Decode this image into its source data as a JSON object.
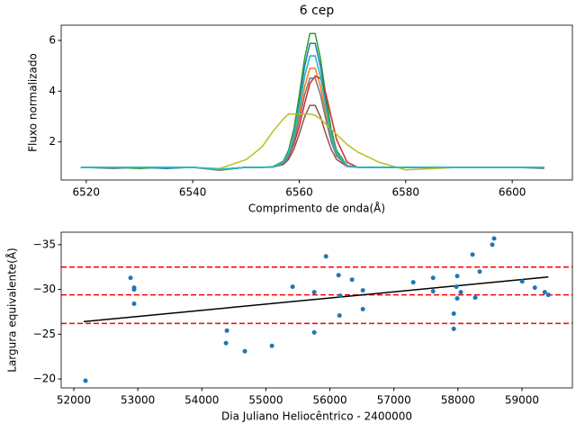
{
  "chart_data": [
    {
      "type": "line",
      "title": "6 cep",
      "xlabel": "Comprimento de onda(Å)",
      "ylabel": "Fluxo normalizado",
      "x": [
        6519,
        6525,
        6530,
        6535,
        6540,
        6545,
        6550,
        6553,
        6555,
        6557,
        6558,
        6559,
        6560,
        6561,
        6562,
        6563,
        6564,
        6565,
        6566,
        6567,
        6569,
        6571,
        6575,
        6580,
        6590,
        6600,
        6606
      ],
      "series": [
        {
          "color": "#1f77b4",
          "values": [
            1,
            1,
            1,
            0.95,
            1,
            0.9,
            1,
            1,
            1.02,
            1.22,
            1.62,
            2.41,
            3.62,
            4.97,
            5.88,
            5.88,
            4.97,
            3.62,
            2.41,
            1.62,
            1.07,
            1,
            1,
            1,
            1,
            1,
            1
          ]
        },
        {
          "color": "#ff7f0e",
          "values": [
            1,
            1,
            1,
            1,
            1,
            0.9,
            1,
            1,
            1.01,
            1.18,
            1.5,
            2.13,
            3.1,
            4.17,
            4.9,
            4.9,
            4.17,
            3.1,
            2.13,
            1.5,
            1.05,
            1,
            1,
            1,
            1,
            1,
            1
          ]
        },
        {
          "color": "#2ca02c",
          "values": [
            1,
            1,
            0.95,
            1,
            1,
            0.88,
            1,
            1,
            1.02,
            1.24,
            1.67,
            2.52,
            3.83,
            5.28,
            6.27,
            6.27,
            5.28,
            3.83,
            2.52,
            1.67,
            1.07,
            1,
            1,
            1,
            1,
            1,
            1
          ]
        },
        {
          "color": "#d62728",
          "values": [
            1,
            1,
            1,
            1,
            1,
            0.9,
            1,
            1,
            1,
            1.15,
            1.4,
            1.9,
            2.6,
            3.5,
            4.3,
            4.6,
            4.5,
            3.9,
            3,
            2.1,
            1.2,
            1,
            1,
            1,
            1,
            1,
            1
          ]
        },
        {
          "color": "#9467bd",
          "values": [
            1,
            1,
            1,
            1,
            1,
            0.92,
            1,
            1,
            1.01,
            1.16,
            1.45,
            2.02,
            2.89,
            3.85,
            4.51,
            4.51,
            3.85,
            2.89,
            2.02,
            1.45,
            1.05,
            1,
            1,
            1,
            1,
            1,
            1
          ]
        },
        {
          "color": "#8c564b",
          "values": [
            1,
            1,
            1,
            1,
            1,
            0.92,
            1,
            1,
            1.01,
            1.11,
            1.31,
            1.71,
            2.31,
            2.98,
            3.44,
            3.44,
            2.98,
            2.31,
            1.71,
            1.31,
            1.03,
            1,
            1,
            1,
            1,
            1,
            1
          ]
        },
        {
          "color": "#e377c2",
          "values": [
            1,
            1,
            1,
            1,
            1,
            0.9,
            1,
            1,
            1.01,
            1.2,
            1.56,
            2.27,
            3.36,
            4.57,
            5.39,
            5.39,
            4.57,
            3.36,
            2.27,
            1.56,
            1.06,
            1,
            1,
            1,
            1,
            1,
            1
          ]
        },
        {
          "color": "#7f7f7f",
          "values": [
            1,
            0.95,
            1,
            1,
            1,
            0.9,
            1,
            1,
            1.01,
            1.16,
            1.45,
            2.02,
            2.89,
            3.85,
            4.51,
            4.51,
            3.85,
            2.89,
            2.02,
            1.45,
            1.05,
            1,
            1,
            1,
            1,
            1,
            0.95
          ]
        },
        {
          "color": "#bcbd22",
          "values": [
            1,
            1,
            1,
            1,
            1,
            0.95,
            1.3,
            1.8,
            2.4,
            2.9,
            3.1,
            3.1,
            3.1,
            3.1,
            3.1,
            3.05,
            2.9,
            2.7,
            2.5,
            2.3,
            1.9,
            1.6,
            1.2,
            0.9,
            1,
            1,
            1
          ]
        },
        {
          "color": "#17becf",
          "values": [
            1,
            1,
            1,
            1,
            1,
            0.92,
            1,
            1,
            1.01,
            1.2,
            1.56,
            2.27,
            3.36,
            4.57,
            5.39,
            5.39,
            4.57,
            3.36,
            2.27,
            1.56,
            1.06,
            1,
            1,
            1,
            1,
            1,
            1
          ]
        }
      ],
      "xlim": [
        6515.3,
        6611.3
      ],
      "ylim": [
        0.5,
        6.6
      ],
      "xticks": [
        6520,
        6540,
        6560,
        6580,
        6600
      ],
      "yticks": [
        2,
        4,
        6
      ]
    },
    {
      "type": "scatter",
      "xlabel": "Dia Juliano Heliocêntrico - 2400000",
      "ylabel": "Largura equivalente(Å)",
      "x": [
        52183,
        52886,
        52942,
        52942,
        52942,
        54391,
        54377,
        54672,
        55094,
        55418,
        55756,
        55756,
        55939,
        56136,
        56150,
        56163,
        56346,
        56515,
        56515,
        57302,
        57612,
        57612,
        57935,
        57935,
        57975,
        57989,
        57989,
        58045,
        58228,
        58270,
        58340,
        58537,
        58565,
        59004,
        59201,
        59356,
        59412
      ],
      "values": [
        -19.8,
        -31.3,
        -30.2,
        -30.0,
        -28.4,
        -25.4,
        -24.0,
        -23.1,
        -23.7,
        -30.3,
        -29.7,
        -25.2,
        -33.7,
        -31.6,
        -27.1,
        -29.3,
        -31.1,
        -29.9,
        -27.8,
        -30.8,
        -31.3,
        -29.8,
        -27.3,
        -25.6,
        -30.3,
        -31.5,
        -29.0,
        -29.7,
        -33.9,
        -29.1,
        -32.0,
        -35.0,
        -35.7,
        -30.9,
        -30.2,
        -29.7,
        -29.4
      ],
      "color": "#1f77b4",
      "trend": {
        "x": [
          52155,
          59412
        ],
        "values": [
          -26.4,
          -31.4
        ],
        "color": "#000000"
      },
      "hlines": {
        "values": [
          -32.5,
          -29.4,
          -26.2
        ],
        "color": "#ff0000"
      },
      "xlim": [
        51803,
        59788
      ],
      "ylim": [
        -19.0,
        -36.4
      ],
      "xticks": [
        52000,
        53000,
        54000,
        55000,
        56000,
        57000,
        58000,
        59000
      ],
      "yticks": [
        {
          "value": -35,
          "label": "−35"
        },
        {
          "value": -30,
          "label": "−30"
        },
        {
          "value": -25,
          "label": "−25"
        },
        {
          "value": -20,
          "label": "−20"
        }
      ]
    }
  ]
}
